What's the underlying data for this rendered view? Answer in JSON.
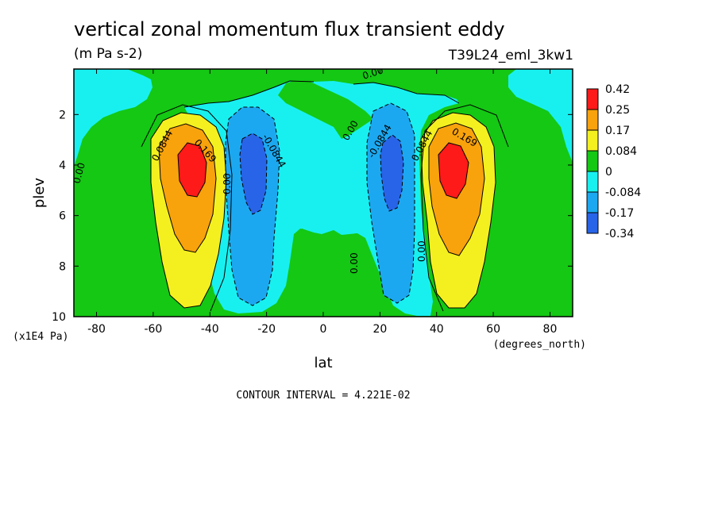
{
  "chart_data": {
    "type": "heatmap",
    "title": "vertical zonal momentum flux transient eddy",
    "units": "(m Pa s-2)",
    "experiment": "T39L24_eml_3kw1",
    "xlabel": "lat",
    "xunits": "(degrees_north)",
    "ylabel": "plev",
    "yunits": "(x1E4 Pa)",
    "xlim": [
      -88,
      88
    ],
    "ylim": [
      10,
      0.2
    ],
    "y_axis_inverted": true,
    "xticks": [
      -80,
      -60,
      -40,
      -20,
      0,
      20,
      40,
      60,
      80
    ],
    "xtick_labels": [
      "-80",
      "-60",
      "-40",
      "-20",
      "0",
      "20",
      "40",
      "60",
      "80"
    ],
    "yticks": [
      2,
      4,
      6,
      8,
      10
    ],
    "ytick_labels": [
      "2",
      "4",
      "6",
      "8",
      "10"
    ],
    "contour_interval_text": "CONTOUR INTERVAL = 4.221E-02",
    "contour_levels": [
      -0.34,
      -0.17,
      -0.084,
      0,
      0.084,
      0.17,
      0.25,
      0.42
    ],
    "colorbar": {
      "labels": [
        "0.42",
        "0.25",
        "0.17",
        "0.084",
        "0",
        "-0.084",
        "-0.17",
        "-0.34"
      ],
      "colors": [
        "#ff1a1a",
        "#f8a20c",
        "#f4f020",
        "#14c814",
        "#18f0f0",
        "#1ca8f0",
        "#2864e8"
      ]
    },
    "contour_labels": [
      "0.00",
      "0.0844",
      "0.169",
      "-0.0844"
    ],
    "features": [
      {
        "name": "NH positive maximum",
        "lat": 45,
        "plev": 4.0,
        "value": 0.42
      },
      {
        "name": "SH positive maximum",
        "lat": -45,
        "plev": 4.0,
        "value": 0.42
      },
      {
        "name": "SH negative minimum",
        "lat": -25,
        "plev": 4.5,
        "value": -0.34
      },
      {
        "name": "NH negative minimum",
        "lat": 25,
        "plev": 4.5,
        "value": -0.34
      }
    ]
  }
}
